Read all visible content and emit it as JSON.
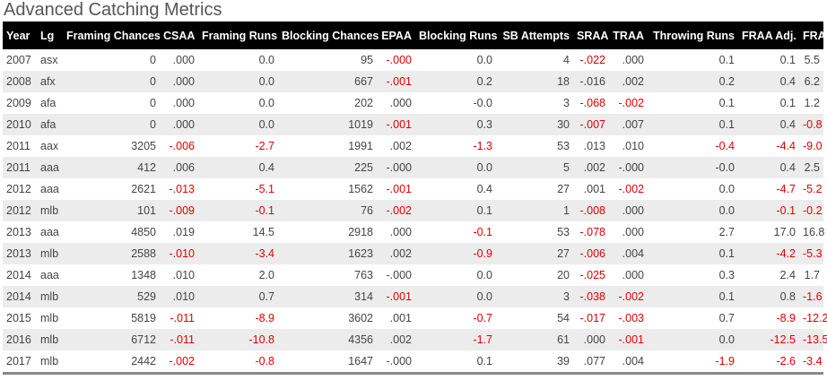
{
  "title": "Advanced Catching Metrics",
  "columns": [
    "Year",
    "Lg",
    "Framing Chances",
    "CSAA",
    "Framing Runs",
    "Blocking Chances",
    "EPAA",
    "Blocking Runs",
    "SB Attempts",
    "SRAA",
    "TRAA",
    "Throwing Runs",
    "FRAA Adj.",
    "FRAA"
  ],
  "rows": [
    [
      "2007",
      "asx",
      "0",
      ".000",
      "0.0",
      "95",
      "-.000",
      "0.0",
      "4",
      "-.022",
      ".000",
      "0.1",
      "0.1",
      "5.5"
    ],
    [
      "2008",
      "afx",
      "0",
      ".000",
      "0.0",
      "667",
      "-.001",
      "0.2",
      "18",
      "-.016",
      ".002",
      "0.2",
      "0.4",
      "6.2"
    ],
    [
      "2009",
      "afa",
      "0",
      ".000",
      "0.0",
      "202",
      ".000",
      "-0.0",
      "3",
      "-.068",
      "-.002",
      "0.1",
      "0.1",
      "1.2"
    ],
    [
      "2010",
      "afa",
      "0",
      ".000",
      "0.0",
      "1019",
      "-.001",
      "0.3",
      "30",
      "-.007",
      ".007",
      "0.1",
      "0.4",
      "-0.8"
    ],
    [
      "2011",
      "aax",
      "3205",
      "-.006",
      "-2.7",
      "1991",
      ".002",
      "-1.3",
      "53",
      ".013",
      ".010",
      "-0.4",
      "-4.4",
      "-9.0"
    ],
    [
      "2011",
      "aaa",
      "412",
      ".006",
      "0.4",
      "225",
      "-.000",
      "0.0",
      "5",
      ".002",
      "-.000",
      "-0.0",
      "0.4",
      "2.5"
    ],
    [
      "2012",
      "aaa",
      "2621",
      "-.013",
      "-5.1",
      "1562",
      "-.001",
      "0.4",
      "27",
      ".001",
      "-.002",
      "0.0",
      "-4.7",
      "-5.2"
    ],
    [
      "2012",
      "mlb",
      "101",
      "-.009",
      "-0.1",
      "76",
      "-.002",
      "0.1",
      "1",
      "-.008",
      ".000",
      "0.0",
      "-0.1",
      "-0.2"
    ],
    [
      "2013",
      "aaa",
      "4850",
      ".019",
      "14.5",
      "2918",
      ".000",
      "-0.1",
      "53",
      "-.078",
      ".000",
      "2.7",
      "17.0",
      "16.8"
    ],
    [
      "2013",
      "mlb",
      "2588",
      "-.010",
      "-3.4",
      "1623",
      ".002",
      "-0.9",
      "27",
      "-.006",
      ".004",
      "0.1",
      "-4.2",
      "-5.3"
    ],
    [
      "2014",
      "aaa",
      "1348",
      ".010",
      "2.0",
      "763",
      "-.000",
      "0.0",
      "20",
      "-.025",
      ".000",
      "0.3",
      "2.4",
      "1.7"
    ],
    [
      "2014",
      "mlb",
      "529",
      ".010",
      "0.7",
      "314",
      "-.001",
      "0.0",
      "3",
      "-.038",
      "-.002",
      "0.1",
      "0.8",
      "-1.6"
    ],
    [
      "2015",
      "mlb",
      "5819",
      "-.011",
      "-8.9",
      "3602",
      ".001",
      "-0.7",
      "54",
      "-.017",
      "-.003",
      "0.7",
      "-8.9",
      "-12.2"
    ],
    [
      "2016",
      "mlb",
      "6712",
      "-.011",
      "-10.8",
      "4356",
      ".002",
      "-1.7",
      "61",
      ".000",
      "-.001",
      "0.0",
      "-12.5",
      "-13.5"
    ],
    [
      "2017",
      "mlb",
      "2442",
      "-.002",
      "-0.8",
      "1647",
      "-.000",
      "0.1",
      "39",
      ".077",
      ".004",
      "-1.9",
      "-2.6",
      "-3.4"
    ]
  ],
  "red_cells": [
    [
      6,
      9
    ],
    [
      6
    ],
    [
      9,
      10
    ],
    [
      6,
      9,
      13
    ],
    [
      3,
      4,
      7,
      11,
      12,
      13
    ],
    [],
    [
      3,
      4,
      6,
      10,
      12,
      13
    ],
    [
      3,
      4,
      6,
      9,
      12,
      13
    ],
    [
      7,
      9
    ],
    [
      3,
      4,
      7,
      9,
      12,
      13
    ],
    [
      9
    ],
    [
      6,
      9,
      10,
      13
    ],
    [
      3,
      4,
      7,
      9,
      10,
      12,
      13
    ],
    [
      3,
      4,
      7,
      10,
      12,
      13
    ],
    [
      3,
      4,
      11,
      12,
      13
    ]
  ],
  "colors": {
    "header_bg": "#000000",
    "negative_text": "#e00000",
    "stripe": "#ececec"
  }
}
